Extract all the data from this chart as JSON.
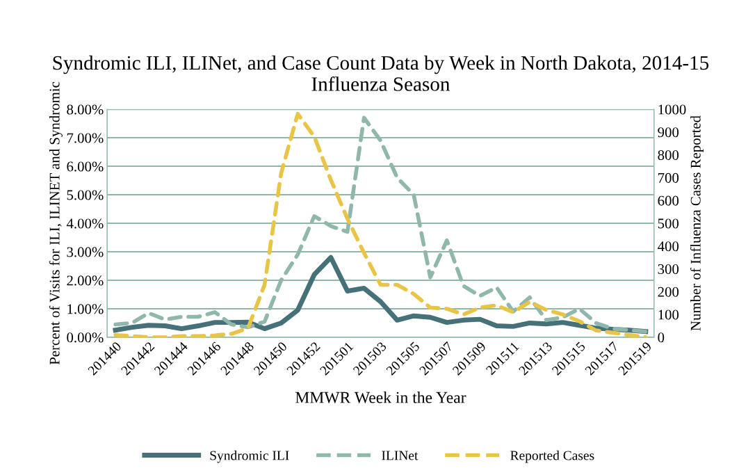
{
  "chart_data": {
    "type": "line",
    "title": "Syndromic ILI, ILINet, and Case Count Data by Week in North Dakota, 2014-15 Influenza Season",
    "xlabel": "MMWR Week in the Year",
    "ylabel": "Percent of Visits for ILI, ILINET and Syndromic",
    "y2label": "Number of Influenza Cases Reported",
    "categories": [
      "201440",
      null,
      "201442",
      null,
      "201444",
      null,
      "201446",
      null,
      "201448",
      null,
      "201450",
      null,
      "201452",
      null,
      "201501",
      null,
      "201503",
      null,
      "201505",
      null,
      "201507",
      null,
      "201509",
      null,
      "201511",
      null,
      "201513",
      null,
      "201515",
      null,
      "201517",
      null,
      "201519"
    ],
    "series": [
      {
        "name": "Syndromic ILI",
        "color": "#467178",
        "line_style": "solid",
        "values": [
          0.25,
          0.35,
          0.42,
          0.4,
          0.3,
          0.4,
          0.52,
          0.52,
          0.53,
          0.3,
          0.5,
          0.95,
          2.2,
          2.8,
          1.62,
          1.72,
          1.25,
          0.6,
          0.75,
          0.7,
          0.52,
          0.6,
          0.63,
          0.4,
          0.38,
          0.5,
          0.47,
          0.52,
          0.42,
          0.32,
          0.28,
          0.25,
          0.2
        ]
      },
      {
        "name": "ILINet",
        "color": "#8fb8aa",
        "line_style": "dashed",
        "values": [
          0.45,
          0.5,
          0.85,
          0.62,
          0.72,
          0.72,
          0.88,
          0.45,
          0.35,
          0.55,
          2.0,
          2.9,
          4.25,
          3.9,
          3.7,
          7.7,
          6.9,
          5.6,
          5.0,
          2.1,
          3.4,
          1.8,
          1.45,
          1.75,
          0.9,
          1.4,
          0.6,
          0.7,
          1.0,
          0.5,
          0.3,
          0.25,
          0.2
        ]
      },
      {
        "name": "Reported Cases",
        "color": "#e8c547",
        "line_style": "dashed",
        "axis": "y2",
        "values": [
          10,
          5,
          0,
          0,
          5,
          5,
          8,
          15,
          40,
          230,
          720,
          980,
          880,
          690,
          520,
          370,
          230,
          230,
          190,
          130,
          125,
          100,
          130,
          140,
          110,
          155,
          120,
          100,
          70,
          30,
          20,
          10,
          0
        ]
      }
    ],
    "ylim": [
      0,
      8
    ],
    "yticks": [
      {
        "value": 0,
        "label": "0.00%"
      },
      {
        "value": 1,
        "label": "1.00%"
      },
      {
        "value": 2,
        "label": "2.00%"
      },
      {
        "value": 3,
        "label": "3.00%"
      },
      {
        "value": 4,
        "label": "4.00%"
      },
      {
        "value": 5,
        "label": "5.00%"
      },
      {
        "value": 6,
        "label": "6.00%"
      },
      {
        "value": 7,
        "label": "7.00%"
      },
      {
        "value": 8,
        "label": "8.00%"
      }
    ],
    "y2lim": [
      0,
      1000
    ],
    "y2ticks": [
      0,
      100,
      200,
      300,
      400,
      500,
      600,
      700,
      800,
      900,
      1000
    ],
    "grid": "y",
    "legend": "bottom",
    "marker": "none"
  }
}
